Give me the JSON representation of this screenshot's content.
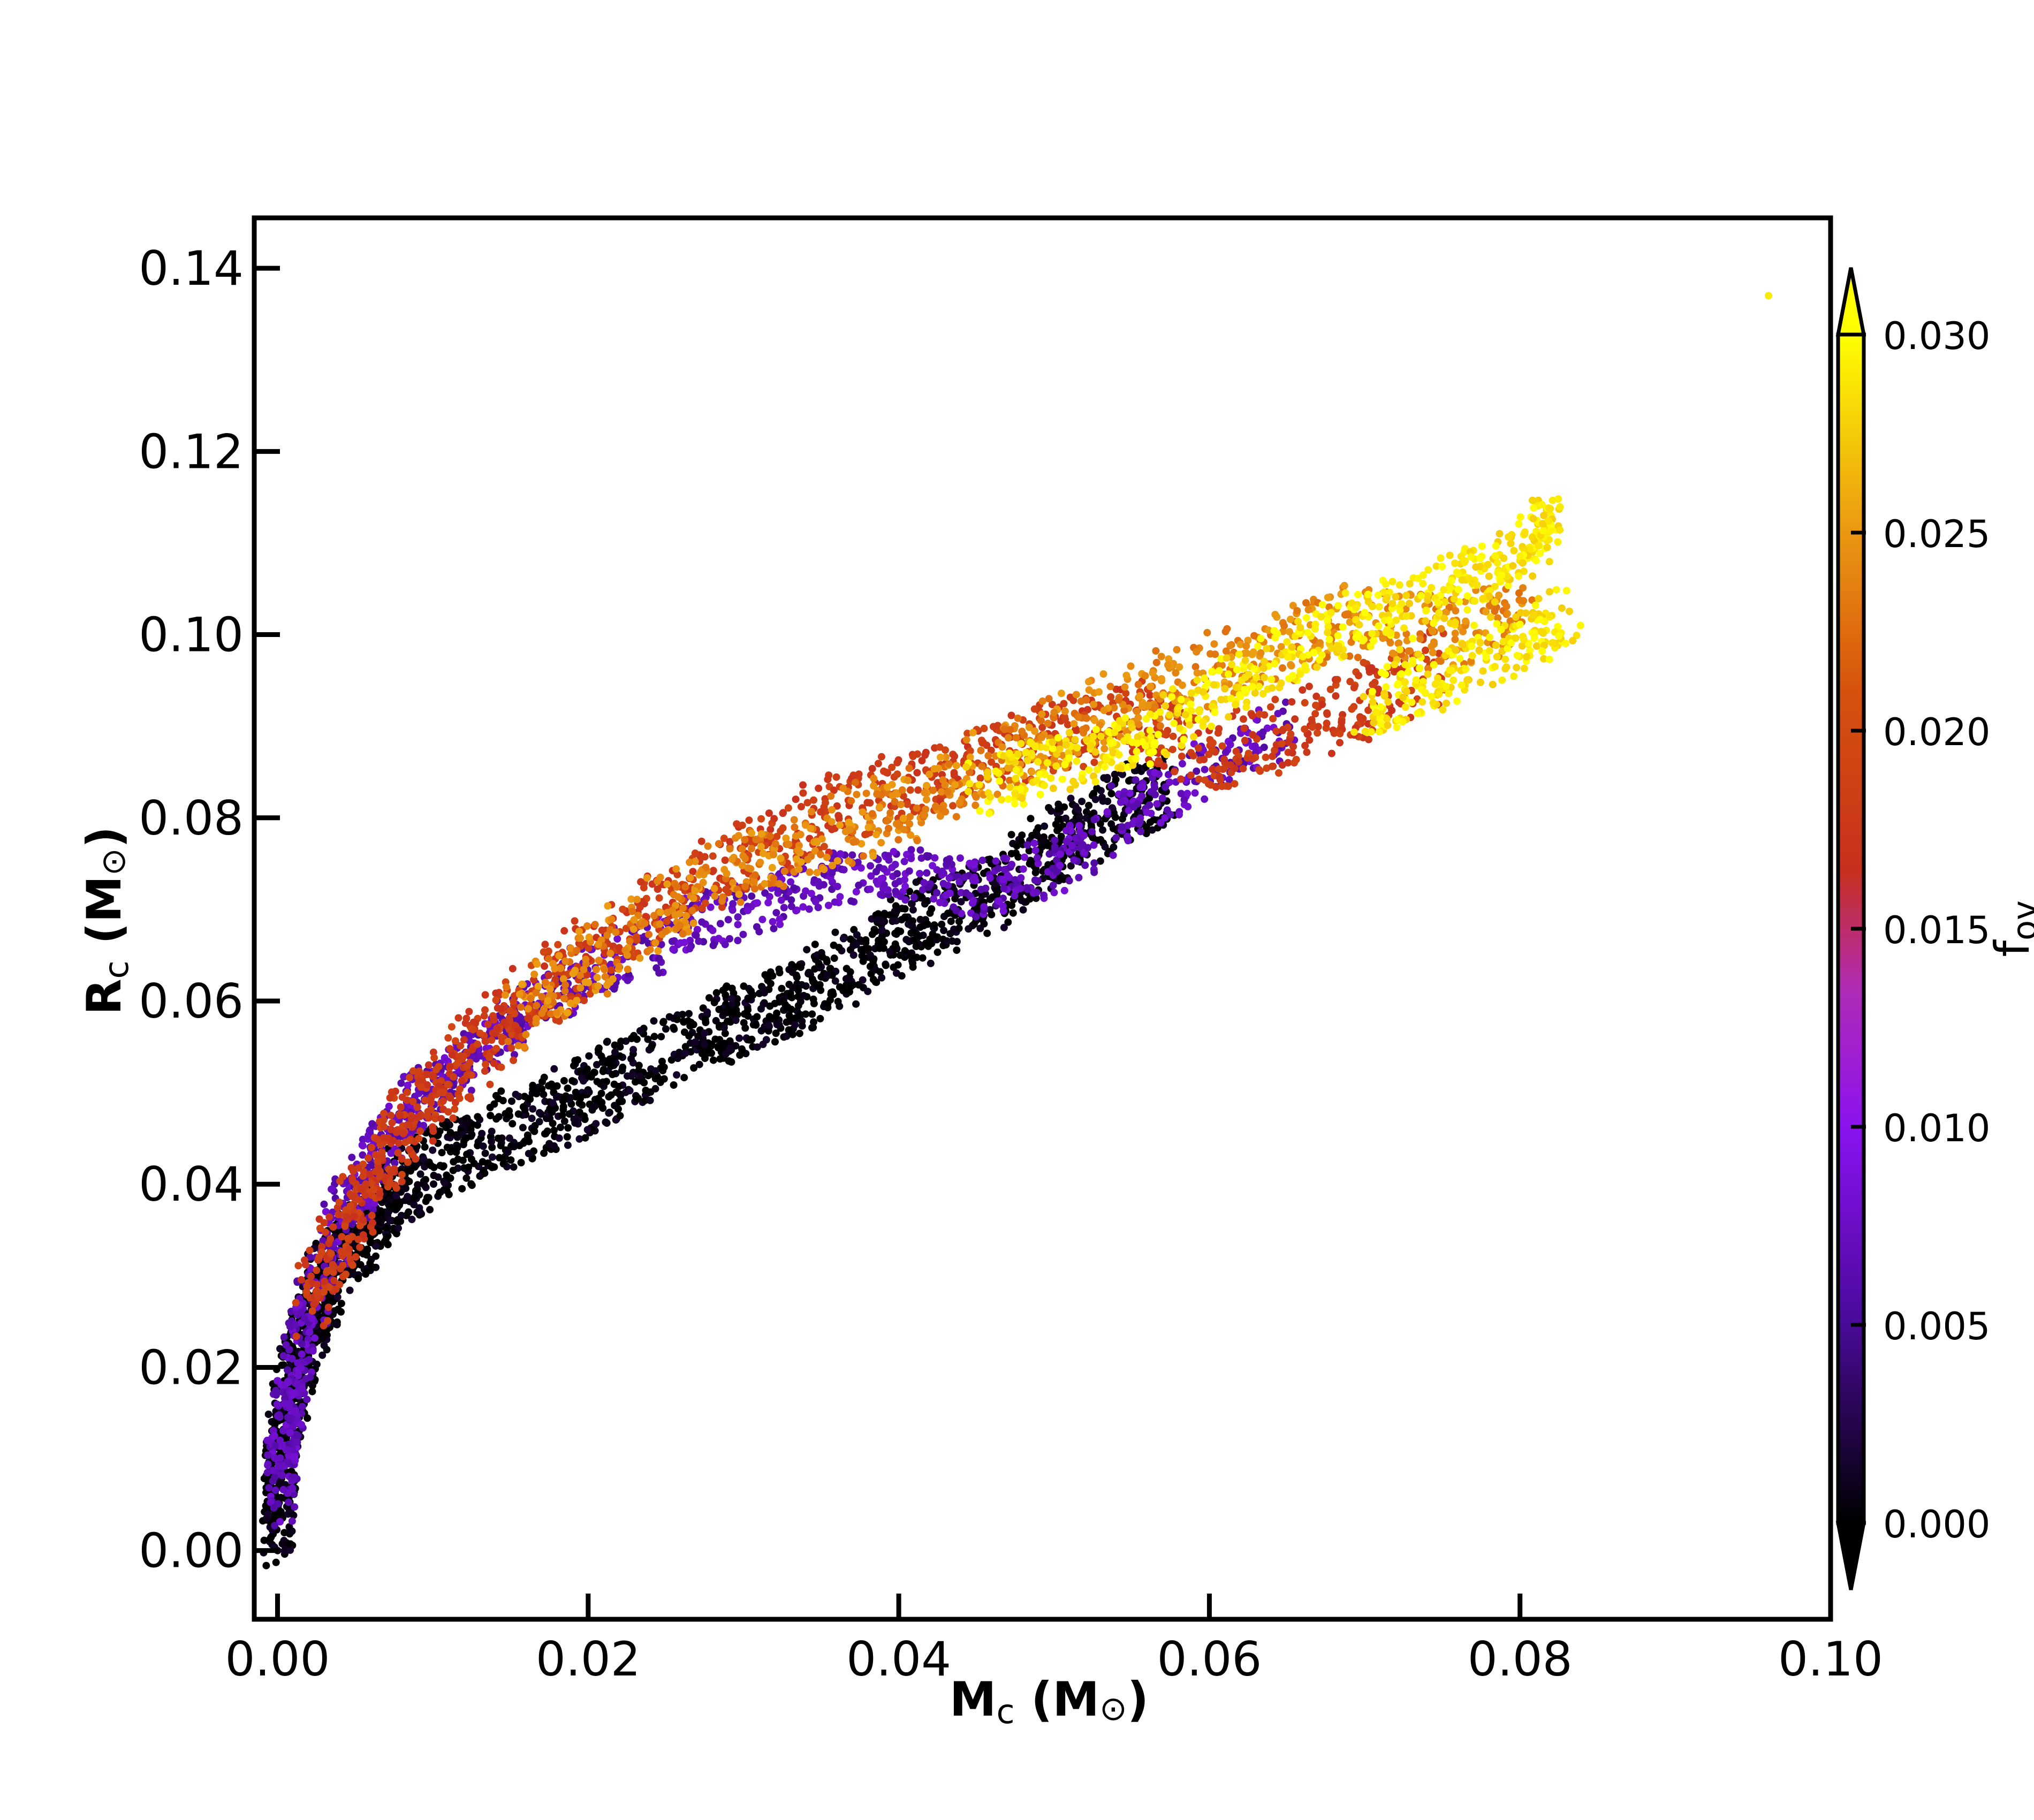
{
  "chart_data": {
    "type": "scatter",
    "title": "",
    "xlabel_main": "M",
    "xlabel_sub": "c",
    "xlabel_unit_open": " (M",
    "xlabel_unit_sym": "⊙",
    "xlabel_unit_close": ")",
    "ylabel_main": "R",
    "ylabel_sub": "c",
    "ylabel_unit_open": " (M",
    "ylabel_unit_sym": "⊙",
    "ylabel_unit_close": ")",
    "xlim": [
      -0.0015,
      0.1
    ],
    "ylim": [
      -0.0075,
      0.1455
    ],
    "xticks": [
      0.0,
      0.02,
      0.04,
      0.06,
      0.08,
      0.1
    ],
    "xtick_labels": [
      "0.00",
      "0.02",
      "0.04",
      "0.06",
      "0.08",
      "0.10"
    ],
    "yticks": [
      0.0,
      0.02,
      0.04,
      0.06,
      0.08,
      0.1,
      0.12,
      0.14
    ],
    "ytick_labels": [
      "0.00",
      "0.02",
      "0.04",
      "0.06",
      "0.08",
      "0.10",
      "0.12",
      "0.14"
    ],
    "grid": false,
    "colorbar": {
      "label": "f",
      "label_sub": "ov",
      "colormap": "gnuplot",
      "range": [
        0.0,
        0.03
      ],
      "extend": "both",
      "ticks": [
        0.0,
        0.005,
        0.01,
        0.015,
        0.02,
        0.025,
        0.03
      ],
      "tick_labels": [
        "0.000",
        "0.005",
        "0.010",
        "0.015",
        "0.020",
        "0.025",
        "0.030"
      ]
    },
    "series": [
      {
        "color_value": 0.0,
        "points": [
          [
            0.0,
            0.001
          ],
          [
            0.0001,
            0.005
          ],
          [
            0.0003,
            0.01
          ],
          [
            0.0006,
            0.015
          ],
          [
            0.001,
            0.018
          ],
          [
            0.0015,
            0.021
          ],
          [
            0.002,
            0.024
          ],
          [
            0.0025,
            0.027
          ],
          [
            0.003,
            0.029
          ],
          [
            0.004,
            0.032
          ],
          [
            0.005,
            0.034
          ],
          [
            0.006,
            0.036
          ],
          [
            0.007,
            0.038
          ],
          [
            0.008,
            0.04
          ],
          [
            0.01,
            0.042
          ],
          [
            0.012,
            0.044
          ],
          [
            0.015,
            0.046
          ],
          [
            0.018,
            0.048
          ],
          [
            0.02,
            0.05
          ],
          [
            0.022,
            0.052
          ],
          [
            0.025,
            0.054
          ],
          [
            0.028,
            0.057
          ],
          [
            0.03,
            0.058
          ],
          [
            0.033,
            0.06
          ],
          [
            0.035,
            0.062
          ],
          [
            0.038,
            0.065
          ],
          [
            0.04,
            0.067
          ],
          [
            0.042,
            0.069
          ],
          [
            0.045,
            0.071
          ],
          [
            0.048,
            0.074
          ],
          [
            0.05,
            0.077
          ],
          [
            0.052,
            0.079
          ],
          [
            0.055,
            0.082
          ],
          [
            0.057,
            0.084
          ]
        ],
        "scatter_width": 0.004
      },
      {
        "color_value": 0.007,
        "points": [
          [
            0.0001,
            0.005
          ],
          [
            0.0004,
            0.012
          ],
          [
            0.001,
            0.018
          ],
          [
            0.002,
            0.026
          ],
          [
            0.004,
            0.036
          ],
          [
            0.006,
            0.042
          ],
          [
            0.008,
            0.047
          ],
          [
            0.01,
            0.051
          ],
          [
            0.013,
            0.055
          ],
          [
            0.016,
            0.059
          ],
          [
            0.02,
            0.063
          ],
          [
            0.025,
            0.067
          ],
          [
            0.03,
            0.07
          ],
          [
            0.035,
            0.073
          ],
          [
            0.04,
            0.074
          ],
          [
            0.045,
            0.072
          ],
          [
            0.05,
            0.075
          ],
          [
            0.055,
            0.081
          ],
          [
            0.06,
            0.086
          ],
          [
            0.065,
            0.09
          ]
        ],
        "scatter_width": 0.003
      },
      {
        "color_value": 0.018,
        "points": [
          [
            0.002,
            0.026
          ],
          [
            0.004,
            0.034
          ],
          [
            0.006,
            0.04
          ],
          [
            0.008,
            0.046
          ],
          [
            0.01,
            0.05
          ],
          [
            0.013,
            0.055
          ],
          [
            0.016,
            0.06
          ],
          [
            0.02,
            0.065
          ],
          [
            0.025,
            0.071
          ],
          [
            0.03,
            0.076
          ],
          [
            0.035,
            0.08
          ],
          [
            0.04,
            0.083
          ],
          [
            0.045,
            0.086
          ],
          [
            0.05,
            0.089
          ],
          [
            0.055,
            0.091
          ],
          [
            0.06,
            0.087
          ],
          [
            0.065,
            0.089
          ],
          [
            0.07,
            0.093
          ],
          [
            0.075,
            0.097
          ]
        ],
        "scatter_width": 0.004
      },
      {
        "color_value": 0.024,
        "points": [
          [
            0.015,
            0.058
          ],
          [
            0.02,
            0.064
          ],
          [
            0.025,
            0.07
          ],
          [
            0.03,
            0.075
          ],
          [
            0.035,
            0.078
          ],
          [
            0.04,
            0.081
          ],
          [
            0.045,
            0.085
          ],
          [
            0.05,
            0.089
          ],
          [
            0.055,
            0.093
          ],
          [
            0.06,
            0.096
          ],
          [
            0.065,
            0.099
          ],
          [
            0.07,
            0.102
          ],
          [
            0.075,
            0.1
          ],
          [
            0.08,
            0.102
          ]
        ],
        "scatter_width": 0.004
      },
      {
        "color_value": 0.029,
        "points": [
          [
            0.045,
            0.083
          ],
          [
            0.05,
            0.086
          ],
          [
            0.055,
            0.088
          ],
          [
            0.06,
            0.093
          ],
          [
            0.065,
            0.098
          ],
          [
            0.07,
            0.102
          ],
          [
            0.075,
            0.105
          ],
          [
            0.08,
            0.109
          ],
          [
            0.082,
            0.113
          ],
          [
            0.07,
            0.091
          ],
          [
            0.075,
            0.095
          ],
          [
            0.08,
            0.099
          ],
          [
            0.083,
            0.102
          ],
          [
            0.096,
            0.137
          ]
        ],
        "scatter_width": 0.003
      }
    ]
  }
}
